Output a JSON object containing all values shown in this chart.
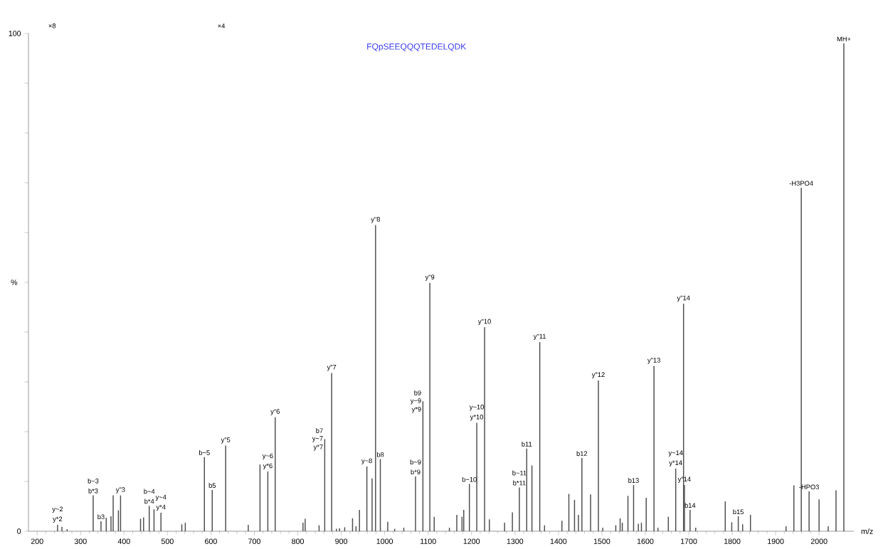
{
  "chart_data": {
    "type": "bar",
    "title": "FQpSEEQQQTEDELQDK",
    "xlabel": "m/z",
    "ylabel": "%",
    "x": [
      247,
      257,
      269,
      329,
      347,
      359,
      370,
      375,
      387,
      392,
      438,
      445,
      458,
      469,
      485,
      533,
      541,
      585,
      603,
      634,
      686,
      713,
      731,
      748,
      812,
      817,
      849,
      862,
      878,
      889,
      896,
      908,
      926,
      934,
      942,
      959,
      971,
      979,
      990,
      1007,
      1023,
      1044,
      1071,
      1088,
      1104,
      1114,
      1149,
      1166,
      1178,
      1182,
      1195,
      1212,
      1230,
      1241,
      1276,
      1294,
      1310,
      1327,
      1339,
      1357,
      1368,
      1408,
      1424,
      1437,
      1446,
      1454,
      1474,
      1492,
      1502,
      1532,
      1542,
      1547,
      1560,
      1573,
      1584,
      1591,
      1602,
      1620,
      1629,
      1653,
      1670,
      1688,
      1690,
      1703,
      1716,
      1784,
      1799,
      1814,
      1824,
      1842,
      1924,
      1942,
      1959,
      1977,
      2000,
      2021,
      2039,
      2057
    ],
    "values": [
      1.3,
      0.9,
      0.4,
      7.2,
      2.0,
      2.7,
      3.0,
      7.2,
      4.2,
      7.2,
      2.5,
      2.8,
      5.1,
      4.4,
      3.7,
      1.4,
      1.7,
      14.9,
      8.3,
      17.2,
      1.3,
      13.4,
      12.0,
      22.9,
      1.7,
      2.5,
      1.2,
      18.5,
      31.8,
      0.5,
      0.6,
      0.8,
      2.6,
      1.0,
      4.3,
      13.0,
      10.6,
      61.5,
      14.5,
      1.9,
      0.5,
      0.7,
      11.0,
      26.1,
      49.9,
      2.9,
      0.7,
      3.3,
      2.9,
      4.3,
      9.5,
      21.8,
      41.0,
      2.4,
      1.7,
      3.8,
      8.8,
      16.6,
      13.2,
      38.0,
      1.2,
      2.1,
      7.5,
      6.3,
      3.3,
      14.7,
      7.4,
      30.3,
      0.7,
      1.2,
      2.6,
      1.7,
      7.1,
      9.3,
      1.5,
      1.7,
      6.7,
      33.2,
      0.7,
      2.9,
      12.6,
      45.7,
      9.3,
      4.3,
      0.7,
      6.0,
      1.8,
      3.0,
      1.4,
      3.3,
      1.0,
      9.2,
      69.0,
      8.0,
      6.4,
      1.0,
      8.2,
      98.0
    ],
    "color": "#4d4d4d",
    "xlim": [
      180,
      2080
    ],
    "ylim": [
      0,
      100
    ],
    "xticks": [
      200,
      300,
      400,
      500,
      600,
      700,
      800,
      900,
      1000,
      1100,
      1200,
      1300,
      1400,
      1500,
      1600,
      1700,
      1800,
      1900,
      2000
    ],
    "yticks": [
      0,
      {
        "value": 10,
        "label": null
      },
      {
        "value": 20,
        "label": null
      },
      {
        "value": 30,
        "label": null
      },
      {
        "value": 40,
        "label": null
      },
      {
        "value": 50,
        "label": null
      },
      {
        "value": 60,
        "label": null
      },
      {
        "value": 70,
        "label": null
      },
      {
        "value": 80,
        "label": null
      },
      {
        "value": 90,
        "label": null
      },
      100
    ],
    "grid": false,
    "annotations": [
      "×8",
      "×4",
      {
        "text": "y~2",
        "x": 247,
        "y": 1.3
      },
      {
        "text": "y*2",
        "x": 247,
        "y": 1.3
      },
      {
        "text": "b~3",
        "x": 329,
        "y": 7.2
      },
      {
        "text": "b*3",
        "x": 329,
        "y": 7.2
      },
      {
        "text": "b3",
        "x": 347,
        "y": 2.0
      },
      {
        "text": "y\"3",
        "x": 392,
        "y": 7.2
      },
      {
        "text": "b~4",
        "x": 458,
        "y": 5.1
      },
      {
        "text": "b*4",
        "x": 458,
        "y": 5.1
      },
      {
        "text": "y~4",
        "x": 485,
        "y": 3.7
      },
      {
        "text": "y*4",
        "x": 485,
        "y": 3.7
      },
      {
        "text": "b~5",
        "x": 585,
        "y": 14.9
      },
      {
        "text": "b5",
        "x": 603,
        "y": 8.3
      },
      {
        "text": "y\"5",
        "x": 634,
        "y": 17.2
      },
      {
        "text": "y~6",
        "x": 731,
        "y": 12.0
      },
      {
        "text": "y*6",
        "x": 731,
        "y": 12.0
      },
      {
        "text": "y\"6",
        "x": 748,
        "y": 22.9
      },
      {
        "text": "b7",
        "x": 862,
        "y": 18.5
      },
      {
        "text": "y~7",
        "x": 862,
        "y": 18.5
      },
      {
        "text": "y*7",
        "x": 862,
        "y": 18.5
      },
      {
        "text": "y\"7",
        "x": 878,
        "y": 31.8
      },
      {
        "text": "y~8",
        "x": 959,
        "y": 13.0
      },
      {
        "text": "y\"8",
        "x": 979,
        "y": 61.5
      },
      {
        "text": "b8",
        "x": 990,
        "y": 14.5
      },
      {
        "text": "b~9",
        "x": 1071,
        "y": 11.0
      },
      {
        "text": "b*9",
        "x": 1071,
        "y": 11.0
      },
      {
        "text": "b9",
        "x": 1088,
        "y": 26.1
      },
      {
        "text": "y~9",
        "x": 1088,
        "y": 26.1
      },
      {
        "text": "y*9",
        "x": 1088,
        "y": 26.1
      },
      {
        "text": "y\"9",
        "x": 1104,
        "y": 49.9
      },
      {
        "text": "b~10",
        "x": 1195,
        "y": 9.5
      },
      {
        "text": "y~10",
        "x": 1212,
        "y": 21.8
      },
      {
        "text": "y*10",
        "x": 1212,
        "y": 21.8
      },
      {
        "text": "y\"10",
        "x": 1230,
        "y": 41.0
      },
      {
        "text": "b~11",
        "x": 1310,
        "y": 8.8
      },
      {
        "text": "b*11",
        "x": 1310,
        "y": 8.8
      },
      {
        "text": "b11",
        "x": 1327,
        "y": 16.6
      },
      {
        "text": "y\"11",
        "x": 1357,
        "y": 38.0
      },
      {
        "text": "b12",
        "x": 1454,
        "y": 14.7
      },
      {
        "text": "y\"12",
        "x": 1492,
        "y": 30.3
      },
      {
        "text": "b13",
        "x": 1573,
        "y": 9.3
      },
      {
        "text": "y\"13",
        "x": 1620,
        "y": 33.2
      },
      {
        "text": "y~14",
        "x": 1670,
        "y": 12.6
      },
      {
        "text": "y*14",
        "x": 1670,
        "y": 12.6
      },
      {
        "text": "y\"14",
        "x": 1688,
        "y": 45.7
      },
      {
        "text": "y\"14",
        "x": 1690,
        "y": 9.3
      },
      {
        "text": "b14",
        "x": 1703,
        "y": 4.3
      },
      {
        "text": "b15",
        "x": 1814,
        "y": 3.0
      },
      {
        "text": "-H3PO4",
        "x": 1959,
        "y": 69.0
      },
      {
        "text": "-HPO3",
        "x": 1977,
        "y": 8.0
      },
      {
        "text": "MH+",
        "x": 2057,
        "y": 98.0
      }
    ]
  }
}
